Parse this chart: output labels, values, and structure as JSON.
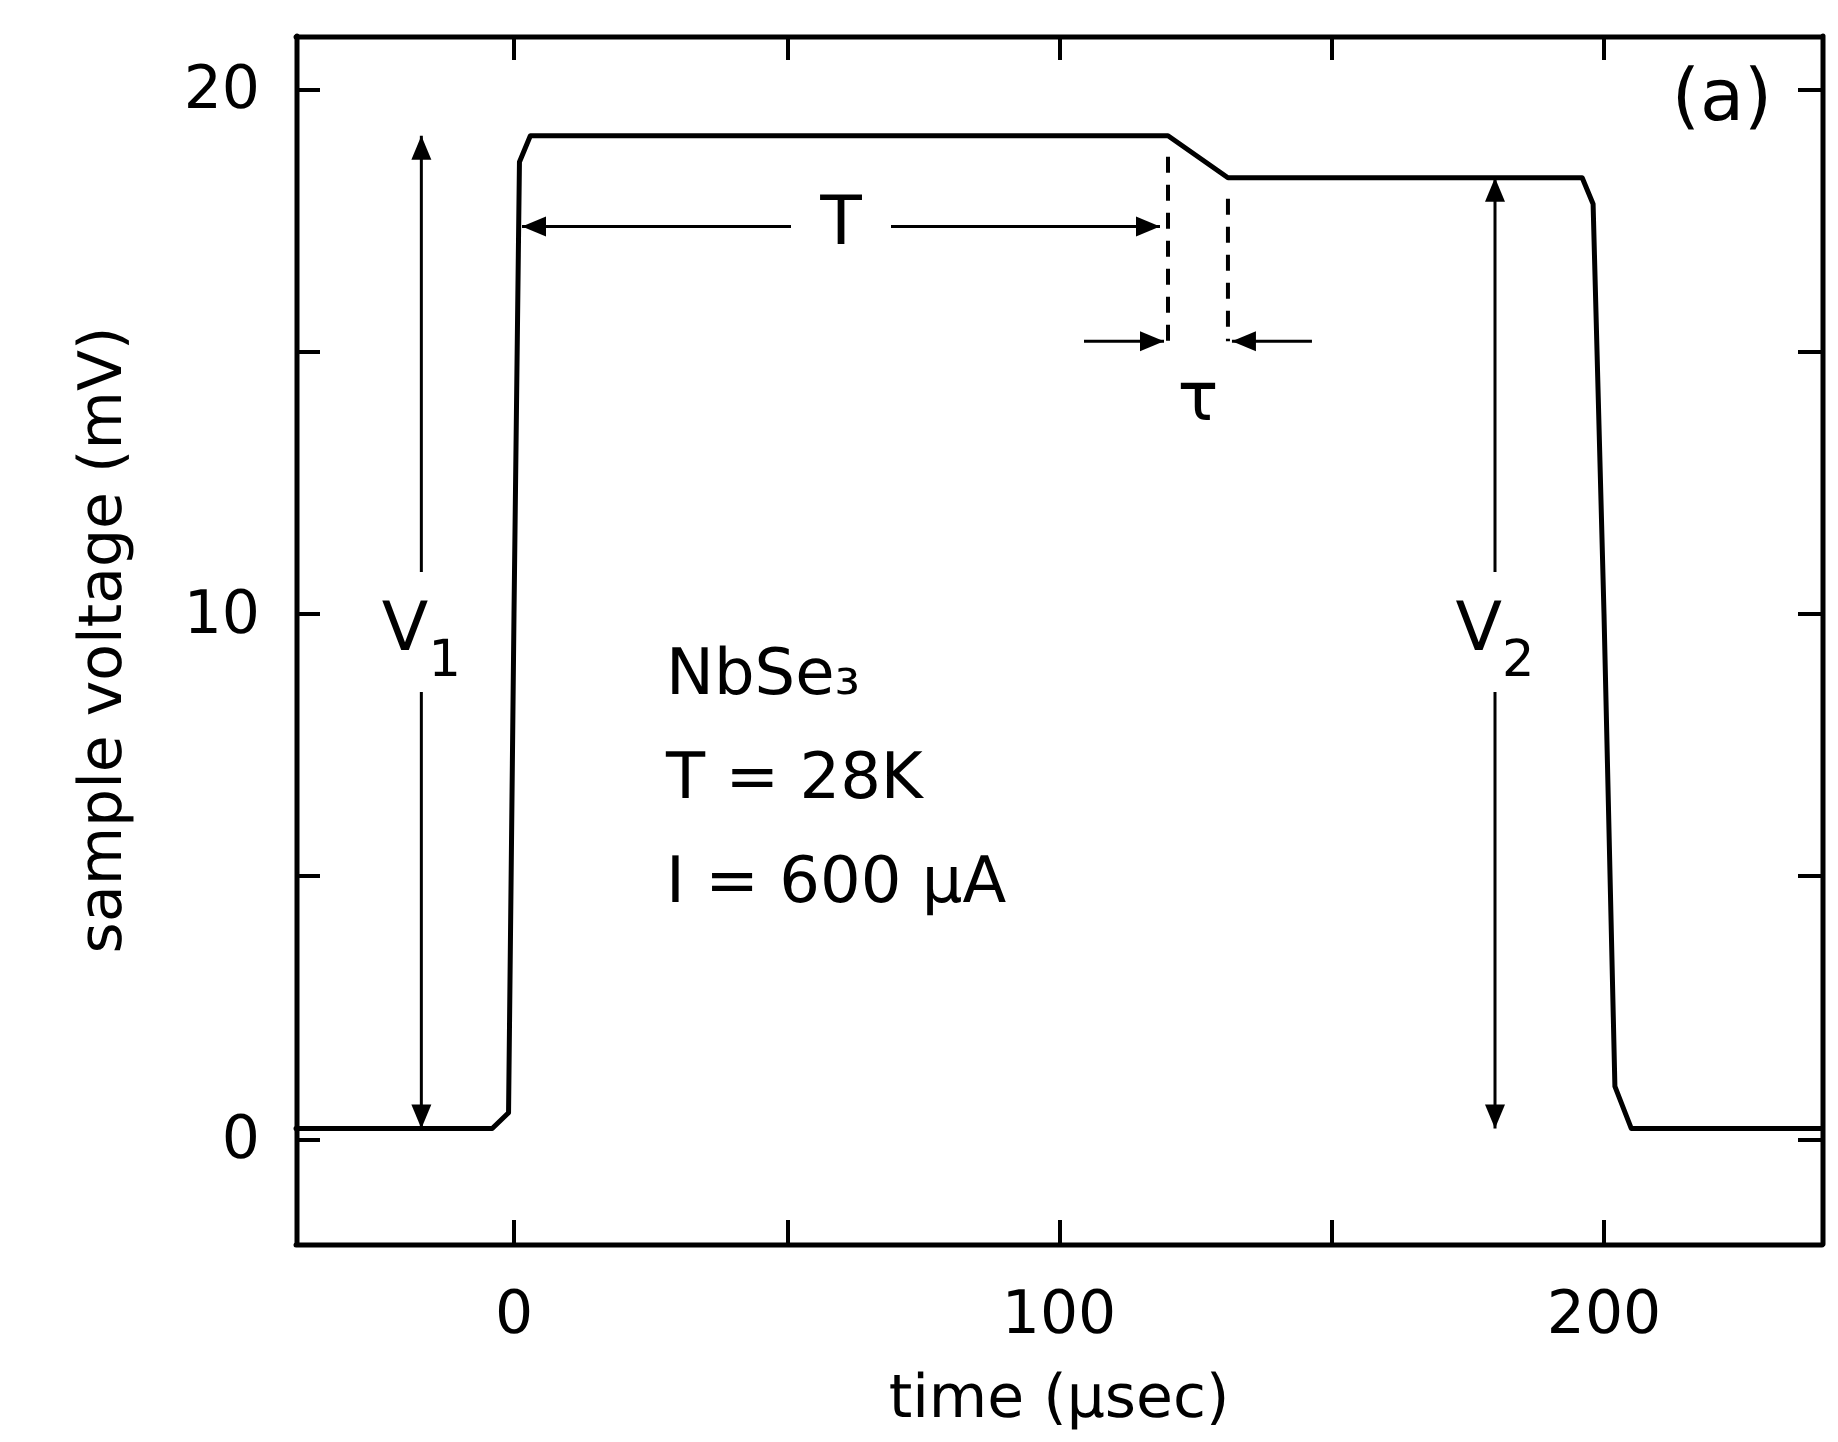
{
  "chart_data": {
    "type": "line",
    "xlabel": "time (μsec)",
    "ylabel": "sample voltage (mV)",
    "x": [
      -40,
      -4,
      -1,
      0,
      1,
      3,
      120,
      131,
      196,
      198,
      200,
      202,
      205,
      240
    ],
    "series": [
      {
        "color": "#000000",
        "values": [
          0.2,
          0.2,
          0.5,
          10,
          18.6,
          19.1,
          19.1,
          18.3,
          18.3,
          17.8,
          10,
          1,
          0.2,
          0.2
        ]
      }
    ],
    "xlim": [
      -40,
      240
    ],
    "xticks": [
      0,
      {
        "value": 50,
        "label": null
      },
      100,
      {
        "value": 150,
        "label": null
      },
      200
    ],
    "ylim": [
      -2,
      21
    ],
    "yticks": [
      0,
      {
        "value": 5,
        "label": null
      },
      10,
      {
        "value": 15,
        "label": null
      },
      20
    ],
    "annotations": [
      "(a)",
      "NbSe₃",
      "T = 28K",
      "I = 600 μA",
      {
        "text": "V$_{1}$",
        "x": -17,
        "y": 0.2
      },
      {
        "text": "V$_{2}$",
        "x": 180,
        "y": 18.3
      },
      "T",
      "τ"
    ],
    "grid": false,
    "marker": "none",
    "line_style": "solid"
  }
}
